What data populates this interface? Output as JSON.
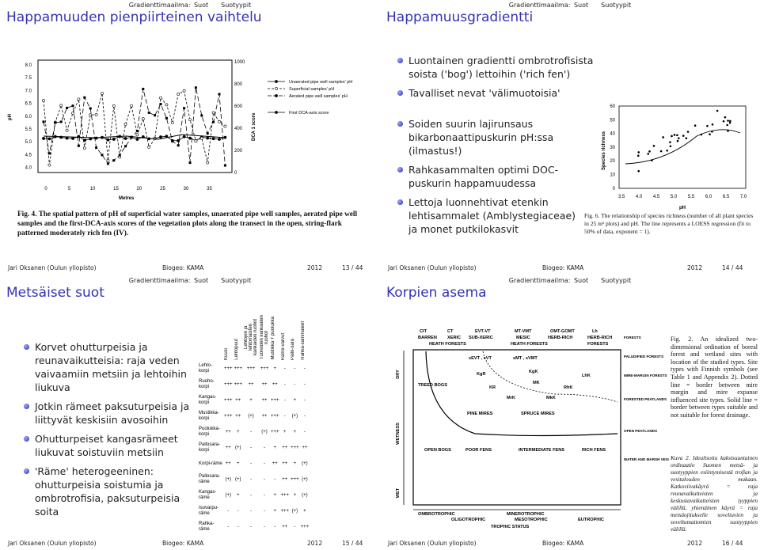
{
  "slides": [
    {
      "header": {
        "section": "Gradienttimaailma: Suot",
        "subsection": "Suotyypit"
      },
      "title": "Happamuuden pienpiirteinen vaihtelu",
      "figure": {
        "y_left_ticks": [
          "8.0",
          "7.5",
          "7.0",
          "6.5",
          "6.0",
          "5.5",
          "5.0",
          "4.5",
          "4.0"
        ],
        "y_right_ticks": [
          "1000",
          "800",
          "600",
          "400",
          "200",
          "0"
        ],
        "x_ticks": [
          "0",
          "5",
          "10",
          "15",
          "20",
          "25",
          "30",
          "35"
        ],
        "x_label": "Metres",
        "y_left_label": "pH",
        "y_right_label": "DCA 1 score",
        "legend": [
          "Unaerated pipe well samples' pH",
          "Superficial samples' pH",
          "Aerated pipe well samples' pH",
          "First DCA-axis score"
        ],
        "caption": "Fig. 4. The spatial pattern of pH of superficial water samples, unaerated pipe well samples, aerated pipe well samples and the first-DCA-axis scores of the vegetation plots along the transect in the open, string-flark patterned moderately rich fen (IV)."
      },
      "footer": {
        "author": "Jari Oksanen (Oulun yliopisto)",
        "short_title": "Biogeo: KAMA",
        "year": "2012",
        "page": "13 / 44"
      }
    },
    {
      "header": {
        "section": "Gradienttimaailma: Suot",
        "subsection": "Suotyypit"
      },
      "title": "Happamuusgradientti",
      "bullets": [
        "Luontainen gradientti ombrotrofisista soista ('bog') lettoihin ('rich fen')",
        "Tavalliset nevat 'välimuotoisia'"
      ],
      "bullets2": [
        "Soiden suurin lajirunsaus bikarbonaattipuskurin pH:ssa (ilmastus!)",
        "Rahkasammalten optimi DOC-puskurin happamuudessa",
        "Lettoja luonnehtivat etenkin lehtisammalet (Amblystegiaceae) ja monet putkilokasvit"
      ],
      "figure": {
        "y_ticks": [
          "60",
          "50",
          "40",
          "30",
          "20",
          "10",
          "0"
        ],
        "x_ticks": [
          "3.5",
          "4.0",
          "4.5",
          "5.0",
          "5.5",
          "6.0",
          "6.5",
          "7.0"
        ],
        "y_label": "Species richness",
        "x_label": "pH",
        "caption": "Fig. 6. The relationship of species richness (number of all plant species in 25 m² plots) and pH. The line represents a LOESS regression (fit to 50% of data, exponent = 1)."
      },
      "footer": {
        "author": "Jari Oksanen (Oulun yliopisto)",
        "short_title": "Biogeo: KAMA",
        "year": "2012",
        "page": "14 / 44"
      }
    },
    {
      "header": {
        "section": "Gradienttimaailma: Suot",
        "subsection": "Suotyypit"
      },
      "title": "Metsäiset suot",
      "bullets": [
        "Korvet ohutturpeisia ja reunavaikutteisia: raja veden vaivaamiin metsiin ja lehtoihin liukuva",
        "Jotkin rämeet paksuturpeisia ja liittyvät keskisiin avosoihin",
        "Ohutturpeiset kangasrämeet liukuvat soistuviin metsiin",
        "'Räme' heterogeeninen: ohutturpeisia soistumia ja ombrotrofisia, paksuturpeisia soita"
      ],
      "table": {
        "columns": [
          "Kuusi",
          "Lehtopuut",
          "Lehtojen ja lehtomaisten kankaiden ruohot",
          "Tuoreiden kankaiden ruohot",
          "Mustikka + puolukka",
          "Räme-varvut",
          "Pallo-sara",
          "Rahka-sammaleet"
        ],
        "rows": [
          {
            "label": "Lehto-korpi",
            "cells": [
              "+++",
              "+++",
              "+++",
              "+++",
              "+",
              "-",
              "-",
              "-"
            ]
          },
          {
            "label": "Ruoho-korpi",
            "cells": [
              "+++",
              "+++",
              "++",
              "++",
              "++",
              "-",
              "-",
              "-"
            ]
          },
          {
            "label": "Kangas-korpi",
            "cells": [
              "+++",
              "++",
              "+",
              "++",
              "+++",
              "-",
              "+",
              "-"
            ]
          },
          {
            "label": "Mustikka-korpi",
            "cells": [
              "+++",
              "++",
              "(+)",
              "++",
              "+++",
              "-",
              "(+)",
              "-"
            ]
          },
          {
            "label": "Puolukka-korpi",
            "cells": [
              "++",
              "+",
              "-",
              "(+)",
              "+++",
              "+",
              "+",
              "-"
            ]
          },
          {
            "label": "Pallosara-korpi",
            "cells": [
              "++",
              "(+)",
              "-",
              "-",
              "+",
              "++",
              "+++",
              "++"
            ]
          },
          {
            "label": "Korpi-räme",
            "cells": [
              "++",
              "+",
              "-",
              "-",
              "++",
              "++",
              "+",
              "(+)"
            ]
          },
          {
            "label": "Pallosara-räme",
            "cells": [
              "(+)",
              "(+)",
              "-",
              "-",
              "-",
              "++",
              "+++",
              "(+)"
            ]
          },
          {
            "label": "Kangas-räme",
            "cells": [
              "(+)",
              "+",
              "-",
              "-",
              "+",
              "+++",
              "+",
              "(+)"
            ]
          },
          {
            "label": "Isovarpu-räme",
            "cells": [
              "-",
              "-",
              "-",
              "-",
              "+",
              "+++",
              "(+)",
              "+"
            ]
          },
          {
            "label": "Rahka-räme",
            "cells": [
              "-",
              "-",
              "-",
              "-",
              "-",
              "++",
              "-",
              "+++"
            ]
          }
        ]
      },
      "footer": {
        "author": "Jari Oksanen (Oulun yliopisto)",
        "short_title": "Biogeo: KAMA",
        "year": "2012",
        "page": "15 / 44"
      }
    },
    {
      "header": {
        "section": "Gradienttimaailma: Suot",
        "subsection": "Suotyypit"
      },
      "title": "Korpien asema",
      "diagram": {
        "labels": [
          "CIT",
          "CT",
          "EVT-VT",
          "MT-VMT",
          "OMT-GOMT",
          "Lh",
          "BARREN",
          "XERIC",
          "SUB-XERIC",
          "MESIC",
          "HERB-RICH",
          "HERB-RICH",
          "HEATH FORESTS",
          "HEATH FORESTS",
          "FORESTS",
          "sEVT , sVT",
          "sMT , sVMT",
          "KgR",
          "KgK",
          "LhK",
          "KR",
          "MK",
          "RhK",
          "MrK",
          "MkK",
          "TREED BOGS",
          "PINE MIRES",
          "SPRUCE MIRES",
          "OPEN BOGS",
          "POOR FENS",
          "INTERMEDIATE FENS",
          "RICH FENS",
          "OMBROTROPHIC",
          "MINEROTROPHIC",
          "OLIGOTROPHIC",
          "MESOTROPHIC",
          "EUTROPHIC",
          "TROPHIC STATUS",
          "FORESTS",
          "PALUDIFIED FORESTS",
          "MIRE-MARGIN FORESTS",
          "FORESTED PEATLANDS",
          "OPEN PEATLANDS",
          "WATER AND MARSH VEGETATION"
        ],
        "axis": [
          "DRY",
          "WETNESS",
          "WET"
        ],
        "caption_en": "Fig. 2. An idealized two-dimensional ordination of boreal forest and wetland sites with location of the studied types. Site types with Finnish symbols (see Table 1 and Appendix 2). Dotted line = border between mire margin and mire expanse influenced site types. Solid line = border between types suitable and not suitable for forest drainage.",
        "caption_fi": "Kuva 2. Idealisoitu kaksisuuntainen ordinaatio Suomen metsä- ja suotyyppien esiintymisestä trofian ja vesitalouden mukaan. Katkoviivakäyrä = raja reunavaikutteisten ja keskustavaikutteisten tyyppien välillä, yhtenäinen käyrä = raja metsäojitukselle soveltuvien ja soveltumattomien suotyyppien välillä."
      },
      "footer": {
        "author": "Jari Oksanen (Oulun yliopisto)",
        "short_title": "Biogeo: KAMA",
        "year": "2012",
        "page": "16 / 44"
      }
    }
  ]
}
